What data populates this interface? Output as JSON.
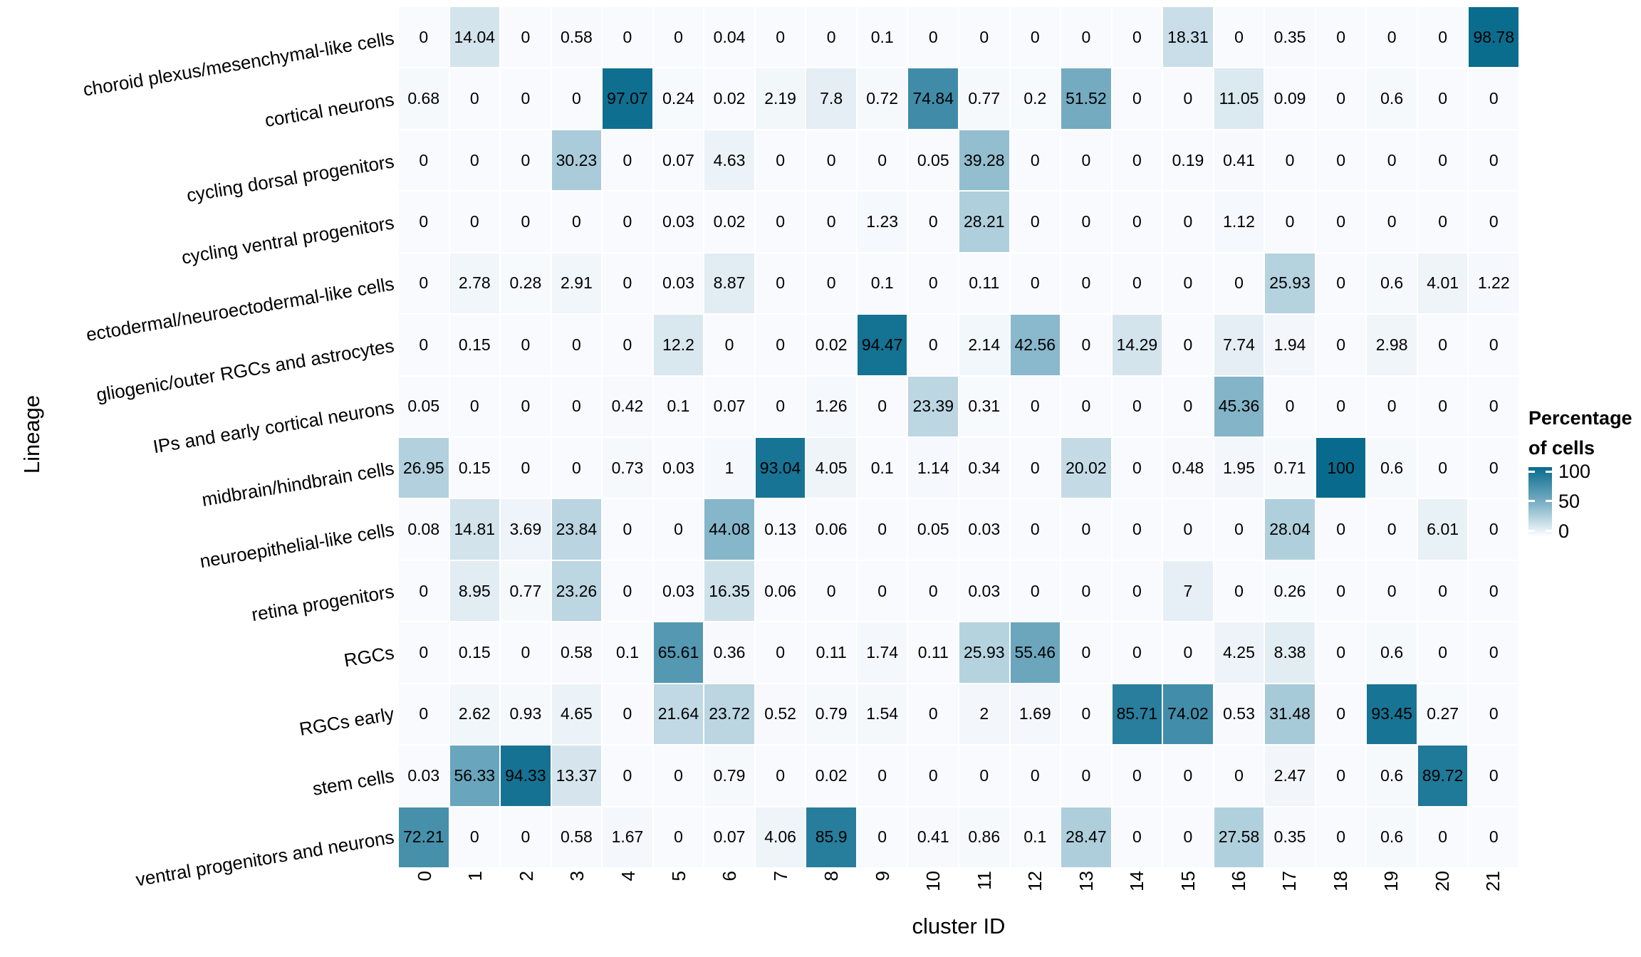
{
  "chart_data": {
    "type": "heatmap",
    "xlabel": "cluster ID",
    "ylabel": "Lineage",
    "columns": [
      "0",
      "1",
      "2",
      "3",
      "4",
      "5",
      "6",
      "7",
      "8",
      "9",
      "10",
      "11",
      "12",
      "13",
      "14",
      "15",
      "16",
      "17",
      "18",
      "19",
      "20",
      "21"
    ],
    "rows": [
      "choroid plexus/mesenchymal-like cells",
      "cortical neurons",
      "cycling dorsal progenitors",
      "cycling ventral progenitors",
      "ectodermal/neuroectodermal-like cells",
      "gliogenic/outer RGCs and astrocytes",
      "IPs and early cortical neurons",
      "midbrain/hindbrain cells",
      "neuroepithelial-like cells",
      "retina progenitors",
      "RGCs",
      "RGCs early",
      "stem cells",
      "ventral progenitors and neurons"
    ],
    "values": [
      [
        0,
        14.04,
        0,
        0.58,
        0,
        0,
        0.04,
        0,
        0,
        0.1,
        0,
        0,
        0,
        0,
        0,
        18.31,
        0,
        0.35,
        0,
        0,
        0,
        98.78
      ],
      [
        0.68,
        0,
        0,
        0,
        97.07,
        0.24,
        0.02,
        2.19,
        7.8,
        0.72,
        74.84,
        0.77,
        0.2,
        51.52,
        0,
        0,
        11.05,
        0.09,
        0,
        0.6,
        0,
        0
      ],
      [
        0,
        0,
        0,
        30.23,
        0,
        0.07,
        4.63,
        0,
        0,
        0,
        0.05,
        39.28,
        0,
        0,
        0,
        0.19,
        0.41,
        0,
        0,
        0,
        0,
        0
      ],
      [
        0,
        0,
        0,
        0,
        0,
        0.03,
        0.02,
        0,
        0,
        1.23,
        0,
        28.21,
        0,
        0,
        0,
        0,
        1.12,
        0,
        0,
        0,
        0,
        0
      ],
      [
        0,
        2.78,
        0.28,
        2.91,
        0,
        0.03,
        8.87,
        0,
        0,
        0.1,
        0,
        0.11,
        0,
        0,
        0,
        0,
        0,
        25.93,
        0,
        0.6,
        4.01,
        1.22
      ],
      [
        0,
        0.15,
        0,
        0,
        0,
        12.2,
        0,
        0,
        0.02,
        94.47,
        0,
        2.14,
        42.56,
        0,
        14.29,
        0,
        7.74,
        1.94,
        0,
        2.98,
        0,
        0
      ],
      [
        0.05,
        0,
        0,
        0,
        0.42,
        0.1,
        0.07,
        0,
        1.26,
        0,
        23.39,
        0.31,
        0,
        0,
        0,
        0,
        45.36,
        0,
        0,
        0,
        0,
        0
      ],
      [
        26.95,
        0.15,
        0,
        0,
        0.73,
        0.03,
        1,
        93.04,
        4.05,
        0.1,
        1.14,
        0.34,
        0,
        20.02,
        0,
        0.48,
        1.95,
        0.71,
        100,
        0.6,
        0,
        0
      ],
      [
        0.08,
        14.81,
        3.69,
        23.84,
        0,
        0,
        44.08,
        0.13,
        0.06,
        0,
        0.05,
        0.03,
        0,
        0,
        0,
        0,
        0,
        28.04,
        0,
        0,
        6.01,
        0
      ],
      [
        0,
        8.95,
        0.77,
        23.26,
        0,
        0.03,
        16.35,
        0.06,
        0,
        0,
        0,
        0.03,
        0,
        0,
        0,
        7,
        0,
        0.26,
        0,
        0,
        0,
        0
      ],
      [
        0,
        0.15,
        0,
        0.58,
        0.1,
        65.61,
        0.36,
        0,
        0.11,
        1.74,
        0.11,
        25.93,
        55.46,
        0,
        0,
        0,
        4.25,
        8.38,
        0,
        0.6,
        0,
        0
      ],
      [
        0,
        2.62,
        0.93,
        4.65,
        0,
        21.64,
        23.72,
        0.52,
        0.79,
        1.54,
        0,
        2,
        1.69,
        0,
        85.71,
        74.02,
        0.53,
        31.48,
        0,
        93.45,
        0.27,
        0
      ],
      [
        0.03,
        56.33,
        94.33,
        13.37,
        0,
        0,
        0.79,
        0,
        0.02,
        0,
        0,
        0,
        0,
        0,
        0,
        0,
        0,
        2.47,
        0,
        0.6,
        89.72,
        0
      ],
      [
        72.21,
        0,
        0,
        0.58,
        1.67,
        0,
        0.07,
        4.06,
        85.9,
        0,
        0.41,
        0.86,
        0.1,
        28.47,
        0,
        0,
        27.58,
        0.35,
        0,
        0.6,
        0,
        0
      ]
    ],
    "value_domain": [
      0,
      100
    ],
    "grid": false,
    "legend": {
      "position": "right",
      "title_line1": "Percentage",
      "title_line2": "of cells",
      "ticks": [
        "100",
        "50",
        "0"
      ]
    },
    "colorscale": {
      "stops": [
        [
          0,
          "#f8fafd"
        ],
        [
          50,
          "#77adc3"
        ],
        [
          100,
          "#086b8d"
        ]
      ]
    },
    "colors": {
      "cell_text": "#000000",
      "background": "#ffffff",
      "accent_high": "#086b8d"
    }
  }
}
